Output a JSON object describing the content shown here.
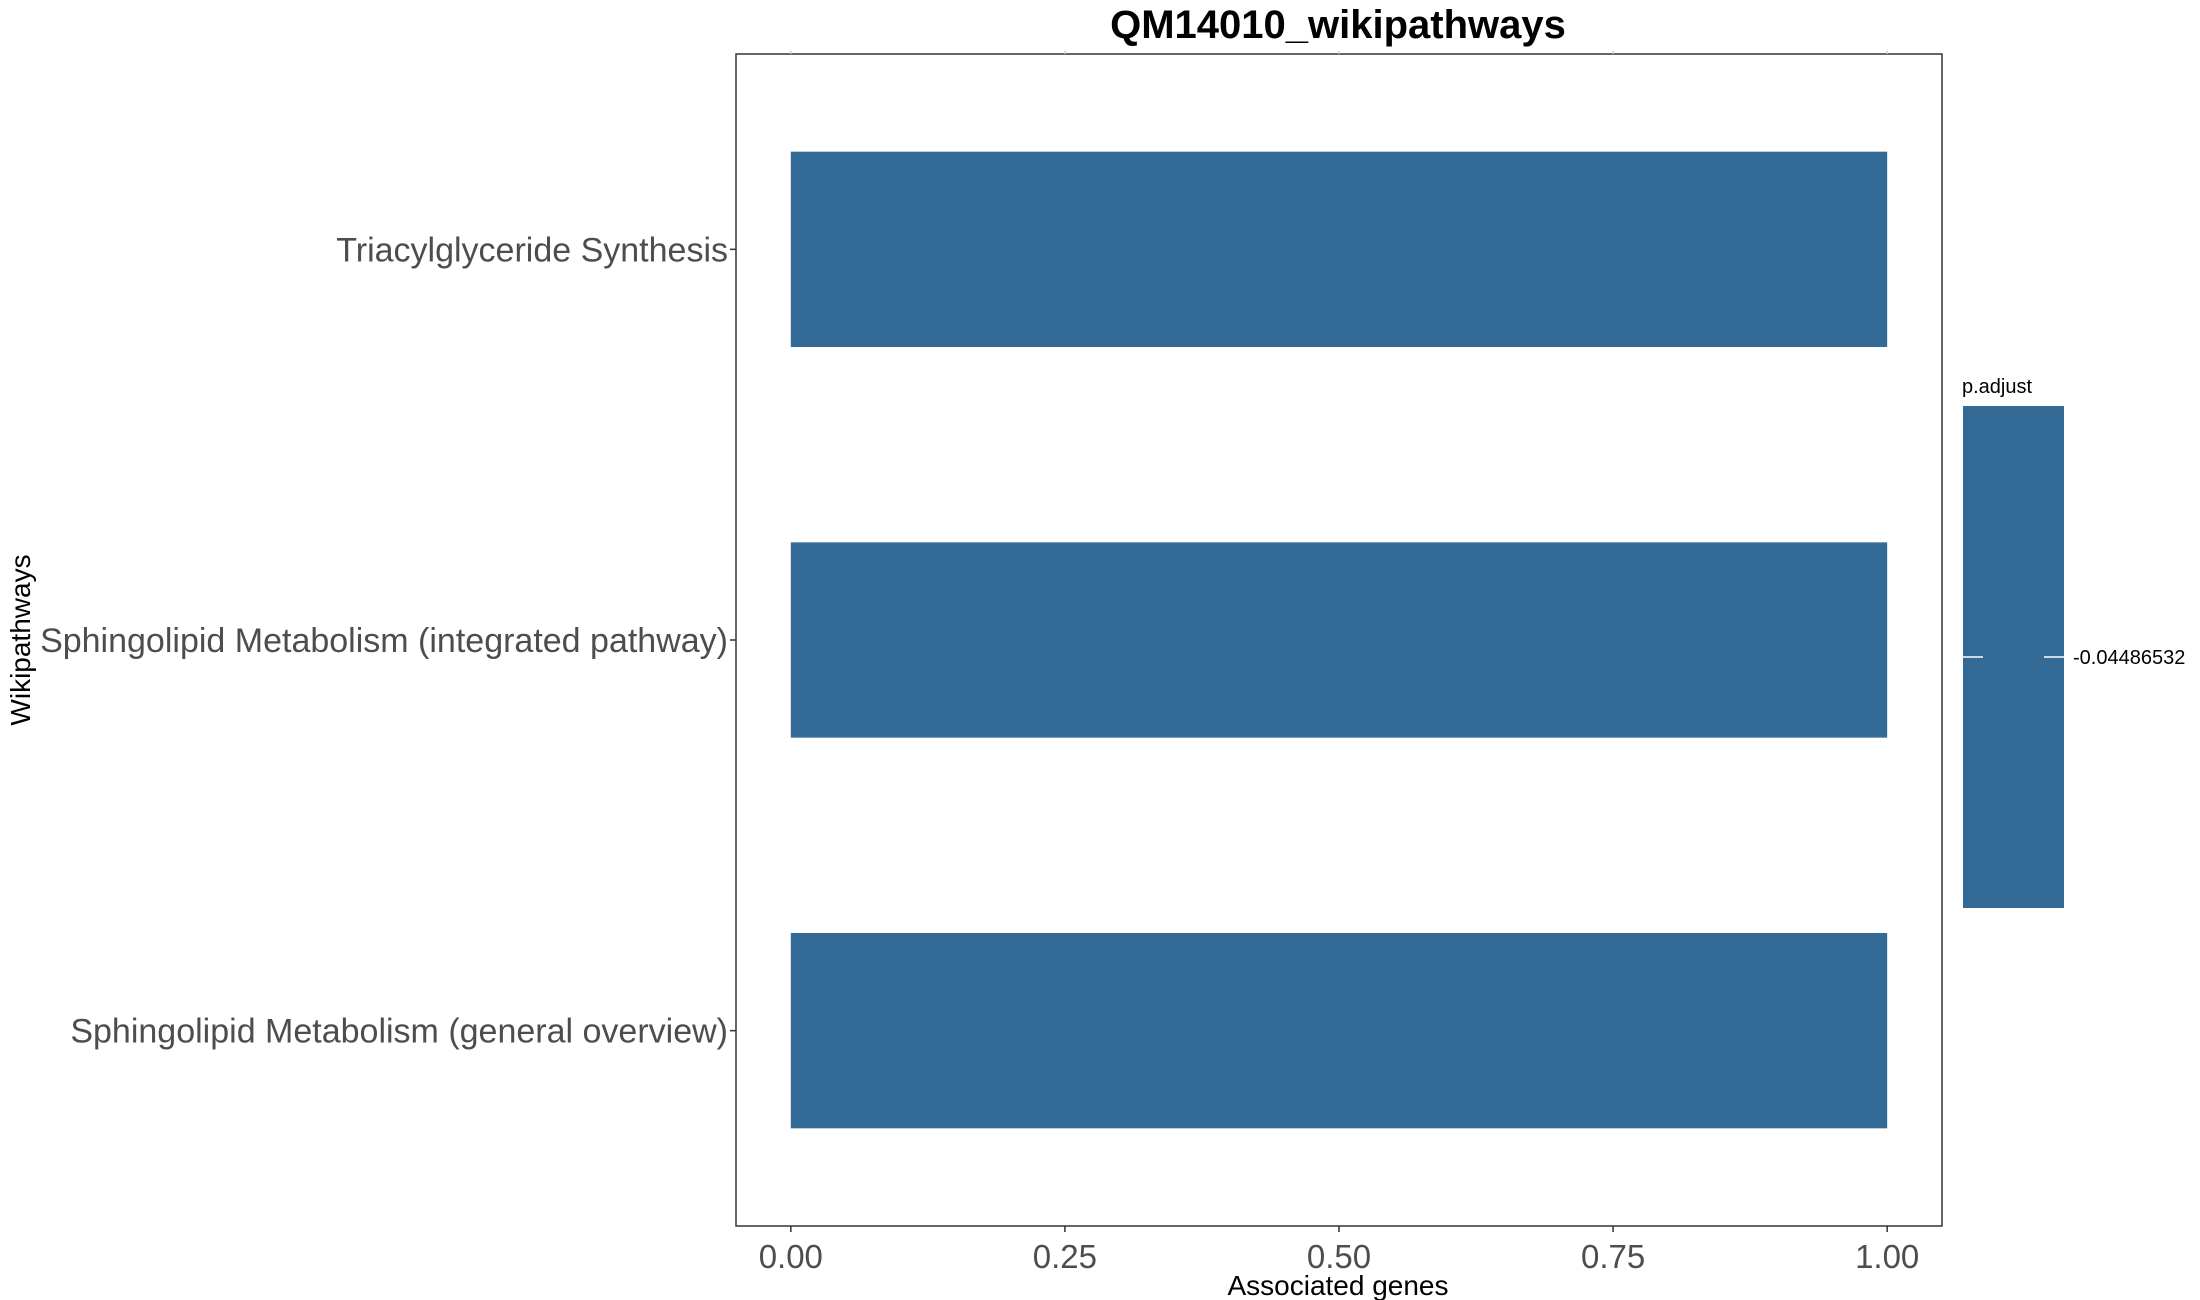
{
  "chart_data": {
    "type": "bar",
    "orientation": "horizontal",
    "title": "QM14010_wikipathways",
    "xlabel": "Associated genes",
    "ylabel": "Wikipathways",
    "categories": [
      "Triacylglyceride Synthesis",
      "Sphingolipid Metabolism (integrated pathway)",
      "Sphingolipid Metabolism (general overview)"
    ],
    "values": [
      1.0,
      1.0,
      1.0
    ],
    "xlim": [
      -0.05,
      1.05
    ],
    "xticks": [
      0.0,
      0.25,
      0.5,
      0.75,
      1.0
    ],
    "xtick_labels": [
      "0.00",
      "0.25",
      "0.50",
      "0.75",
      "1.00"
    ],
    "grid": false,
    "bar_color": "#346a96",
    "legend": {
      "title": "p.adjust",
      "placement": "right",
      "labels": [
        "-0.04486532"
      ],
      "color": "#346a96"
    }
  }
}
